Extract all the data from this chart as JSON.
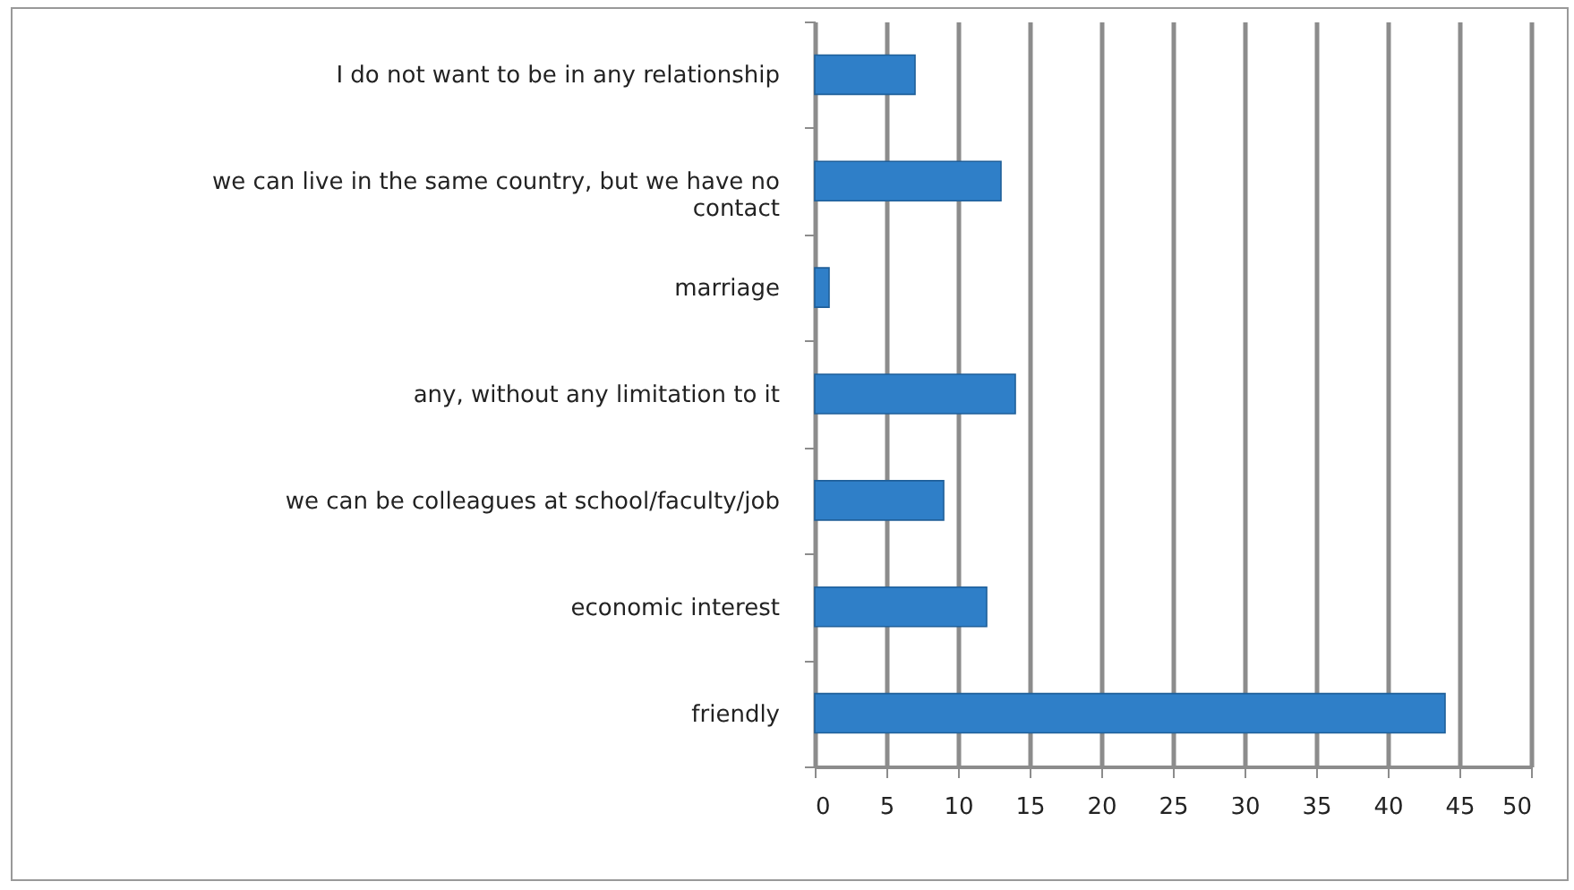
{
  "chart_data": {
    "type": "bar",
    "orientation": "horizontal",
    "categories": [
      "I do not want to be in any relationship",
      "we can live in the same country, but we have no contact",
      "marriage",
      "any, without any limitation to it",
      "we can be colleagues at school/faculty/job",
      "economic interest",
      "friendly"
    ],
    "values": [
      7,
      13,
      1,
      14,
      9,
      12,
      44
    ],
    "color": "#2f7fc8",
    "xlim": [
      0,
      50
    ],
    "xticks": [
      0,
      5,
      10,
      15,
      20,
      25,
      30,
      35,
      40,
      45,
      50
    ],
    "grid": "x"
  }
}
